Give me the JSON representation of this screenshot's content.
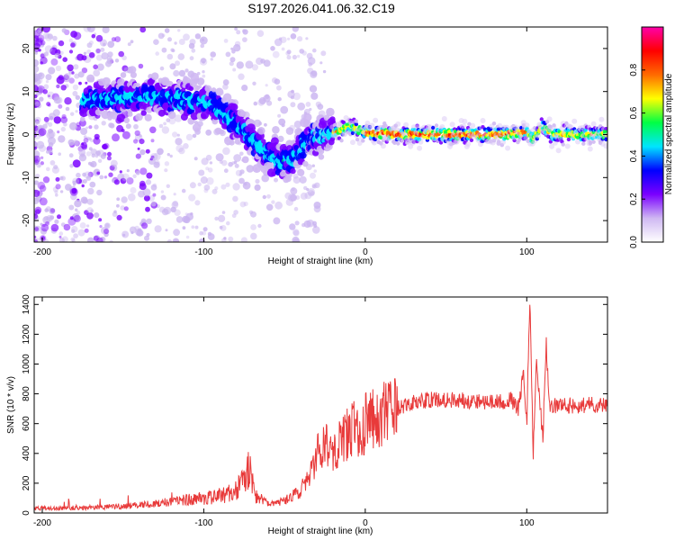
{
  "title": "S197.2026.041.06.32.C19",
  "chart_data": [
    {
      "type": "heatmap",
      "xlabel": "Height of straight line (km)",
      "ylabel": "Frequency (Hz)",
      "xlim": [
        -205,
        150
      ],
      "ylim": [
        -25,
        25
      ],
      "xticks": [
        -200,
        -100,
        0,
        100
      ],
      "yticks": [
        -20,
        -10,
        0,
        10,
        20
      ],
      "colorbar": {
        "label": "Normalized spectral amplitude",
        "range": [
          0,
          1
        ],
        "ticks": [
          0.0,
          0.2,
          0.4,
          0.6,
          0.8
        ],
        "colors": [
          "#ffffff",
          "#cfb8f2",
          "#7a00ff",
          "#0000ff",
          "#00e5ff",
          "#00ff44",
          "#ffff00",
          "#ff6a00",
          "#ff0000",
          "#ff00aa"
        ]
      },
      "ridge": {
        "x": [
          -170,
          -150,
          -130,
          -110,
          -95,
          -85,
          -75,
          -65,
          -55,
          -45,
          -35,
          -25,
          -15,
          -10,
          0,
          20,
          40,
          60,
          80,
          100,
          104,
          110,
          115,
          130,
          150
        ],
        "y": [
          8,
          8.5,
          9,
          8,
          7,
          4,
          1,
          -3,
          -6,
          -6,
          -1,
          0,
          1,
          2,
          0.5,
          0,
          0,
          0,
          0,
          0.5,
          -1,
          2,
          0,
          0,
          0
        ]
      }
    },
    {
      "type": "line",
      "xlabel": "Height of straight line (km)",
      "ylabel": "SNR (10 * v/v)",
      "xlim": [
        -205,
        150
      ],
      "ylim": [
        0,
        1450
      ],
      "xticks": [
        -200,
        -100,
        0,
        100
      ],
      "yticks": [
        0,
        200,
        400,
        600,
        800,
        1000,
        1200,
        1400
      ],
      "color": "#e83a3a",
      "series": [
        {
          "x": [
            -205,
            -180,
            -150,
            -130,
            -120,
            -110,
            -100,
            -90,
            -80,
            -75,
            -72,
            -68,
            -60,
            -50,
            -40,
            -35,
            -30,
            -25,
            -20,
            -15,
            -10,
            0,
            10,
            20,
            30,
            40,
            60,
            80,
            90,
            95,
            98,
            100,
            102,
            104,
            106,
            110,
            112,
            114,
            120,
            130,
            140,
            150
          ],
          "y": [
            30,
            35,
            45,
            60,
            80,
            90,
            100,
            110,
            150,
            220,
            300,
            120,
            60,
            80,
            150,
            250,
            380,
            500,
            420,
            480,
            550,
            600,
            650,
            700,
            740,
            760,
            760,
            740,
            760,
            700,
            950,
            600,
            1450,
            400,
            1000,
            500,
            1150,
            700,
            730,
            720,
            730,
            720
          ]
        }
      ]
    }
  ]
}
